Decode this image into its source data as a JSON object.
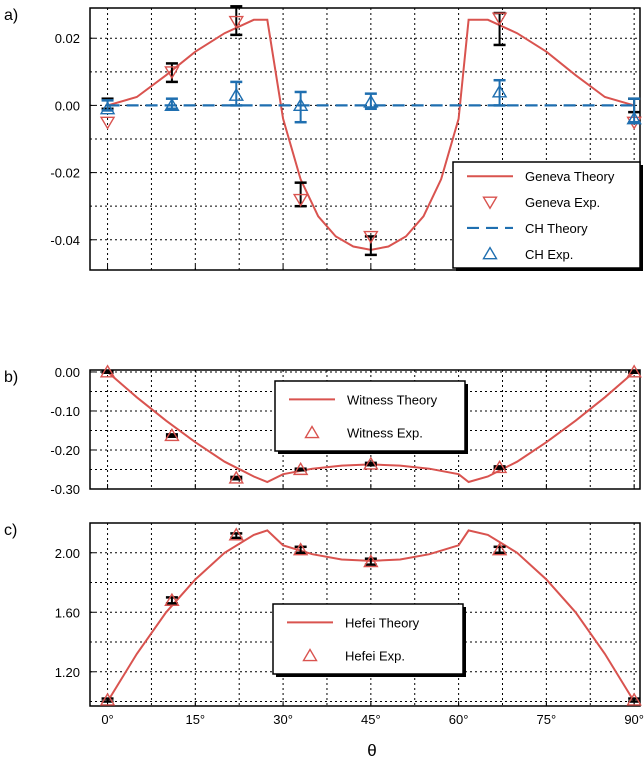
{
  "colors": {
    "geneva": "#d9534f",
    "ch": "#1f6fb0",
    "error_bar": "#000000",
    "grid": "#000000"
  },
  "x_axis": {
    "label": "θ",
    "range_deg": [
      -3,
      91
    ],
    "ticks": [
      {
        "value": 0,
        "label": "0°"
      },
      {
        "value": 15,
        "label": "15°"
      },
      {
        "value": 30,
        "label": "30°"
      },
      {
        "value": 45,
        "label": "45°"
      },
      {
        "value": 60,
        "label": "60°"
      },
      {
        "value": 75,
        "label": "75°"
      },
      {
        "value": 90,
        "label": "90°"
      }
    ]
  },
  "chart_data": [
    {
      "panel_label": "a)",
      "type": "line",
      "grid": true,
      "legend_position": "bottom-right",
      "ylim": [
        -0.049,
        0.029
      ],
      "yticks": [
        {
          "value": 0.02,
          "label": "0.02"
        },
        {
          "value": 0.0,
          "label": "0.00"
        },
        {
          "value": -0.02,
          "label": "-0.02"
        },
        {
          "value": -0.04,
          "label": "-0.04"
        }
      ],
      "series": [
        {
          "name": "Geneva Theory",
          "kind": "line",
          "color": "#d9534f",
          "x": [
            0,
            5,
            10,
            15,
            20,
            25,
            27.3,
            30,
            33,
            36,
            39,
            42,
            45,
            48,
            51,
            54,
            57,
            60,
            61.7,
            65,
            70,
            75,
            80,
            85,
            90
          ],
          "y": [
            0.0,
            0.0025,
            0.009,
            0.016,
            0.0215,
            0.0255,
            0.0255,
            -0.004,
            -0.022,
            -0.033,
            -0.039,
            -0.042,
            -0.043,
            -0.042,
            -0.039,
            -0.033,
            -0.022,
            -0.004,
            0.0255,
            0.0255,
            0.0215,
            0.016,
            0.009,
            0.0025,
            0.0
          ]
        },
        {
          "name": "Geneva Exp.",
          "kind": "markers",
          "marker": "triangle-down",
          "color": "#d9534f",
          "x": [
            0,
            11,
            22,
            33,
            45,
            67,
            90
          ],
          "y": [
            -0.005,
            0.01,
            0.025,
            -0.028,
            -0.039,
            0.026,
            -0.005
          ],
          "err_low": [
            -0.001,
            0.007,
            0.021,
            -0.03,
            -0.0445,
            0.018,
            -0.002
          ],
          "err_high": [
            0.002,
            0.0125,
            0.0295,
            -0.023,
            -0.039,
            0.0275,
            0.002
          ]
        },
        {
          "name": "CH Theory",
          "kind": "dashed-line",
          "color": "#1f6fb0",
          "x": [
            0,
            90
          ],
          "y": [
            0.0,
            0.0
          ]
        },
        {
          "name": "CH Exp.",
          "kind": "markers",
          "marker": "triangle-up",
          "color": "#1f6fb0",
          "x": [
            0,
            11,
            22,
            33,
            45,
            67,
            90
          ],
          "y": [
            -0.001,
            0.0,
            0.003,
            0.0,
            0.001,
            0.004,
            -0.004
          ],
          "err_low": [
            -0.0015,
            -0.001,
            0.0,
            -0.005,
            -0.001,
            0.0,
            -0.005
          ],
          "err_high": [
            0.0015,
            0.002,
            0.007,
            0.004,
            0.0035,
            0.0075,
            0.002
          ]
        }
      ]
    },
    {
      "panel_label": "b)",
      "type": "line",
      "grid": true,
      "legend_position": "top-center",
      "ylim": [
        -0.3,
        0.005
      ],
      "yticks": [
        {
          "value": 0.0,
          "label": "0.00"
        },
        {
          "value": -0.1,
          "label": "-0.10"
        },
        {
          "value": -0.2,
          "label": "-0.20"
        },
        {
          "value": -0.3,
          "label": "-0.30"
        }
      ],
      "series": [
        {
          "name": "Witness Theory",
          "kind": "line",
          "color": "#d9534f",
          "x": [
            0,
            5,
            10,
            15,
            20,
            25,
            27.3,
            30,
            35,
            40,
            45,
            50,
            55,
            60,
            61.7,
            65,
            70,
            75,
            80,
            85,
            90
          ],
          "y": [
            0.0,
            -0.065,
            -0.125,
            -0.18,
            -0.23,
            -0.268,
            -0.282,
            -0.262,
            -0.248,
            -0.24,
            -0.237,
            -0.24,
            -0.248,
            -0.262,
            -0.282,
            -0.268,
            -0.23,
            -0.18,
            -0.125,
            -0.065,
            0.0
          ]
        },
        {
          "name": "Witness Exp.",
          "kind": "markers",
          "marker": "triangle-up",
          "color": "#d9534f",
          "x": [
            0,
            11,
            22,
            33,
            45,
            67,
            90
          ],
          "y": [
            0.0,
            -0.163,
            -0.272,
            -0.25,
            -0.236,
            -0.245,
            0.0
          ],
          "err_low": [
            -0.002,
            -0.166,
            -0.275,
            -0.252,
            -0.239,
            -0.248,
            -0.002
          ],
          "err_high": [
            0.002,
            -0.16,
            -0.269,
            -0.248,
            -0.233,
            -0.242,
            0.002
          ]
        }
      ]
    },
    {
      "panel_label": "c)",
      "type": "line",
      "grid": true,
      "legend_position": "bottom-center",
      "ylim": [
        0.97,
        2.2
      ],
      "yticks": [
        {
          "value": 2.0,
          "label": "2.00"
        },
        {
          "value": 1.6,
          "label": "1.60"
        },
        {
          "value": 1.2,
          "label": "1.20"
        }
      ],
      "series": [
        {
          "name": "Hefei Theory",
          "kind": "line",
          "color": "#d9534f",
          "x": [
            0,
            5,
            10,
            15,
            20,
            25,
            27.3,
            30,
            35,
            40,
            45,
            50,
            55,
            60,
            61.7,
            65,
            70,
            75,
            80,
            85,
            90
          ],
          "y": [
            1.0,
            1.32,
            1.6,
            1.82,
            2.0,
            2.12,
            2.15,
            2.05,
            1.99,
            1.955,
            1.945,
            1.955,
            1.99,
            2.05,
            2.15,
            2.12,
            2.0,
            1.82,
            1.6,
            1.32,
            1.0
          ]
        },
        {
          "name": "Hefei Exp.",
          "kind": "markers",
          "marker": "triangle-up",
          "color": "#d9534f",
          "x": [
            0,
            11,
            22,
            33,
            45,
            67,
            90
          ],
          "y": [
            1.01,
            1.68,
            2.12,
            2.02,
            1.94,
            2.02,
            1.01
          ],
          "err_low": [
            1.0,
            1.66,
            2.1,
            2.0,
            1.92,
            2.0,
            1.0
          ],
          "err_high": [
            1.02,
            1.7,
            2.13,
            2.04,
            1.96,
            2.04,
            1.02
          ]
        }
      ]
    }
  ]
}
